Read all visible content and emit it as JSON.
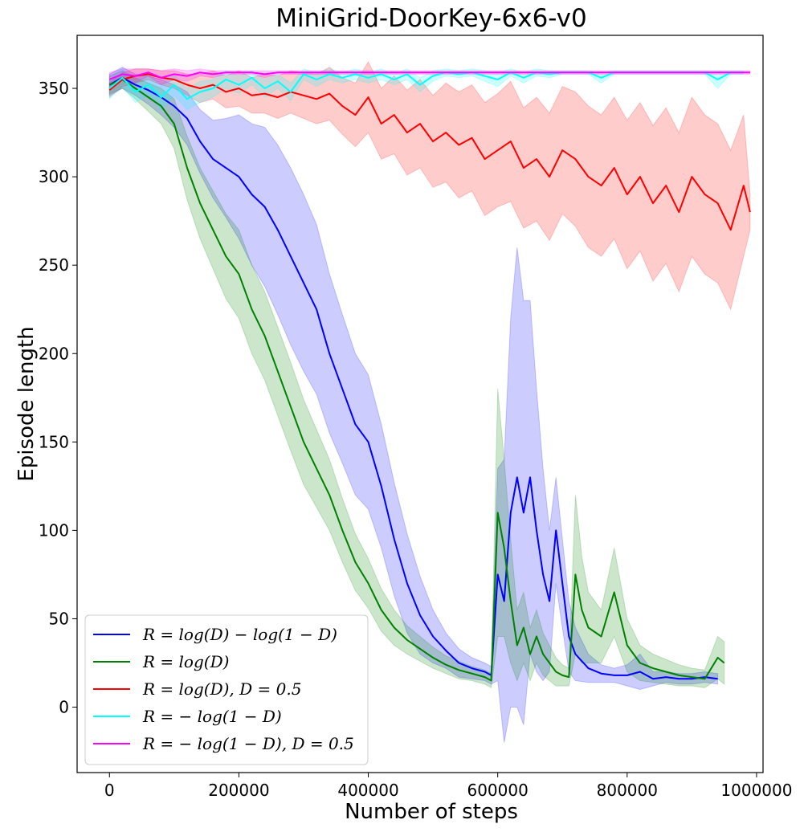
{
  "chart_data": {
    "type": "line",
    "title": "MiniGrid-DoorKey-6x6-v0",
    "xlabel": "Number of steps",
    "ylabel": "Episode length",
    "xlim": [
      -50000,
      1010000
    ],
    "ylim": [
      -37,
      380
    ],
    "xticks": [
      0,
      200000,
      400000,
      600000,
      800000,
      1000000
    ],
    "xtick_labels": [
      "0",
      "200000",
      "400000",
      "600000",
      "800000",
      "1000000"
    ],
    "yticks": [
      0,
      50,
      100,
      150,
      200,
      250,
      300,
      350
    ],
    "ytick_labels": [
      "0",
      "50",
      "100",
      "150",
      "200",
      "250",
      "300",
      "350"
    ],
    "legend_position": "lower-left",
    "series": [
      {
        "name": "R = log(D) − log(1 − D)",
        "color": "#0000ff",
        "x": [
          0,
          20000,
          40000,
          60000,
          80000,
          100000,
          120000,
          140000,
          160000,
          180000,
          200000,
          220000,
          240000,
          260000,
          280000,
          300000,
          320000,
          340000,
          360000,
          380000,
          400000,
          420000,
          440000,
          460000,
          480000,
          500000,
          520000,
          540000,
          560000,
          580000,
          590000,
          600000,
          610000,
          620000,
          630000,
          640000,
          650000,
          660000,
          670000,
          680000,
          690000,
          700000,
          710000,
          720000,
          740000,
          760000,
          780000,
          800000,
          820000,
          840000,
          860000,
          880000,
          900000,
          920000,
          940000
        ],
        "y": [
          352,
          356,
          352,
          349,
          345,
          340,
          333,
          320,
          310,
          305,
          300,
          290,
          283,
          270,
          255,
          240,
          225,
          200,
          180,
          160,
          150,
          125,
          95,
          70,
          52,
          40,
          32,
          25,
          22,
          20,
          18,
          75,
          60,
          110,
          130,
          110,
          130,
          100,
          75,
          60,
          100,
          70,
          40,
          30,
          22,
          19,
          18,
          18,
          20,
          16,
          17,
          16,
          16,
          17,
          16
        ],
        "band_half_width": [
          6,
          6,
          6,
          8,
          10,
          12,
          15,
          18,
          22,
          28,
          35,
          40,
          45,
          48,
          50,
          50,
          48,
          45,
          42,
          40,
          38,
          35,
          32,
          28,
          22,
          15,
          10,
          8,
          6,
          5,
          5,
          60,
          80,
          110,
          130,
          120,
          100,
          80,
          60,
          40,
          30,
          25,
          20,
          15,
          8,
          5,
          4,
          6,
          10,
          4,
          3,
          3,
          3,
          3,
          3
        ]
      },
      {
        "name": "R = log(D)",
        "color": "#008000",
        "x": [
          0,
          20000,
          40000,
          60000,
          80000,
          100000,
          120000,
          140000,
          160000,
          180000,
          200000,
          220000,
          240000,
          260000,
          280000,
          300000,
          320000,
          340000,
          360000,
          380000,
          400000,
          420000,
          440000,
          460000,
          480000,
          500000,
          520000,
          540000,
          560000,
          580000,
          590000,
          600000,
          610000,
          620000,
          630000,
          640000,
          650000,
          660000,
          670000,
          680000,
          690000,
          700000,
          710000,
          720000,
          730000,
          740000,
          760000,
          780000,
          800000,
          820000,
          840000,
          860000,
          880000,
          900000,
          920000,
          940000,
          950000
        ],
        "y": [
          352,
          355,
          350,
          345,
          340,
          330,
          305,
          285,
          270,
          255,
          245,
          225,
          210,
          190,
          170,
          150,
          135,
          120,
          100,
          82,
          70,
          55,
          45,
          38,
          33,
          28,
          24,
          21,
          19,
          17,
          15,
          110,
          90,
          60,
          35,
          45,
          30,
          40,
          30,
          25,
          20,
          18,
          17,
          75,
          55,
          45,
          40,
          65,
          35,
          25,
          22,
          20,
          18,
          17,
          16,
          28,
          25
        ],
        "band_half_width": [
          5,
          5,
          6,
          8,
          10,
          14,
          18,
          20,
          22,
          24,
          25,
          25,
          25,
          25,
          25,
          24,
          22,
          20,
          18,
          16,
          14,
          12,
          10,
          8,
          7,
          6,
          5,
          5,
          4,
          4,
          4,
          70,
          50,
          35,
          20,
          20,
          15,
          15,
          12,
          10,
          8,
          6,
          5,
          45,
          30,
          20,
          15,
          25,
          15,
          10,
          8,
          7,
          6,
          5,
          5,
          12,
          12
        ]
      },
      {
        "name": "R = log(D), D = 0.5",
        "color": "#ff0000",
        "x": [
          0,
          20000,
          40000,
          60000,
          80000,
          100000,
          120000,
          140000,
          160000,
          180000,
          200000,
          220000,
          240000,
          260000,
          280000,
          300000,
          320000,
          340000,
          360000,
          380000,
          400000,
          420000,
          440000,
          460000,
          480000,
          500000,
          520000,
          540000,
          560000,
          580000,
          600000,
          620000,
          640000,
          660000,
          680000,
          700000,
          720000,
          740000,
          760000,
          780000,
          800000,
          820000,
          840000,
          860000,
          880000,
          900000,
          920000,
          940000,
          960000,
          980000,
          990000
        ],
        "y": [
          349,
          355,
          357,
          358,
          356,
          355,
          352,
          350,
          352,
          348,
          350,
          346,
          347,
          345,
          348,
          346,
          344,
          347,
          340,
          335,
          345,
          330,
          335,
          325,
          330,
          320,
          325,
          318,
          322,
          310,
          315,
          320,
          305,
          310,
          300,
          315,
          310,
          300,
          295,
          305,
          290,
          300,
          285,
          295,
          280,
          300,
          290,
          285,
          270,
          295,
          280
        ],
        "band_half_width": [
          4,
          4,
          4,
          3,
          4,
          5,
          6,
          8,
          8,
          9,
          10,
          10,
          11,
          12,
          12,
          13,
          14,
          15,
          16,
          18,
          20,
          20,
          22,
          24,
          25,
          26,
          28,
          30,
          30,
          32,
          32,
          34,
          34,
          35,
          36,
          36,
          38,
          40,
          40,
          40,
          42,
          42,
          44,
          44,
          45,
          45,
          45,
          45,
          45,
          40,
          10
        ]
      },
      {
        "name": "R = − log(1 − D)",
        "color": "#00ffff",
        "x": [
          0,
          20000,
          40000,
          60000,
          80000,
          100000,
          120000,
          140000,
          160000,
          180000,
          200000,
          220000,
          240000,
          260000,
          280000,
          300000,
          320000,
          340000,
          360000,
          380000,
          400000,
          420000,
          440000,
          460000,
          480000,
          500000,
          520000,
          540000,
          560000,
          580000,
          600000,
          620000,
          640000,
          660000,
          680000,
          700000,
          720000,
          740000,
          760000,
          780000,
          800000,
          820000,
          840000,
          860000,
          880000,
          900000,
          920000,
          940000,
          960000,
          980000
        ],
        "y": [
          350,
          356,
          348,
          352,
          345,
          352,
          344,
          348,
          350,
          355,
          352,
          356,
          350,
          354,
          348,
          358,
          355,
          358,
          356,
          358,
          356,
          358,
          355,
          358,
          352,
          357,
          359,
          358,
          359,
          357,
          355,
          359,
          356,
          359,
          358,
          359,
          359,
          359,
          356,
          359,
          359,
          359,
          359,
          359,
          359,
          359,
          359,
          355,
          359,
          359
        ],
        "band_half_width": [
          6,
          5,
          6,
          6,
          7,
          6,
          6,
          6,
          5,
          5,
          5,
          4,
          5,
          4,
          5,
          3,
          4,
          3,
          3,
          3,
          3,
          3,
          3,
          3,
          4,
          3,
          2,
          2,
          2,
          3,
          4,
          2,
          3,
          2,
          2,
          1,
          1,
          1,
          3,
          1,
          1,
          1,
          1,
          1,
          1,
          1,
          1,
          5,
          1,
          1
        ]
      },
      {
        "name": "R = − log(1 − D), D = 0.5",
        "color": "#ff00ff",
        "x": [
          0,
          20000,
          40000,
          60000,
          80000,
          100000,
          120000,
          140000,
          160000,
          180000,
          200000,
          220000,
          240000,
          260000,
          280000,
          300000,
          320000,
          340000,
          360000,
          380000,
          400000,
          450000,
          500000,
          550000,
          600000,
          650000,
          700000,
          750000,
          800000,
          850000,
          900000,
          950000,
          990000
        ],
        "y": [
          355,
          358,
          357,
          359,
          356,
          358,
          357,
          359,
          358,
          359,
          359,
          359,
          358,
          359,
          359,
          359,
          359,
          359,
          359,
          359,
          359,
          359,
          359,
          359,
          359,
          359,
          359,
          359,
          359,
          359,
          359,
          359,
          359
        ],
        "band_half_width": [
          4,
          3,
          4,
          2,
          4,
          3,
          3,
          2,
          2,
          1,
          1,
          1,
          2,
          1,
          1,
          1,
          1,
          1,
          1,
          1,
          1,
          1,
          1,
          1,
          1,
          1,
          1,
          1,
          1,
          1,
          1,
          1,
          1
        ]
      }
    ]
  }
}
